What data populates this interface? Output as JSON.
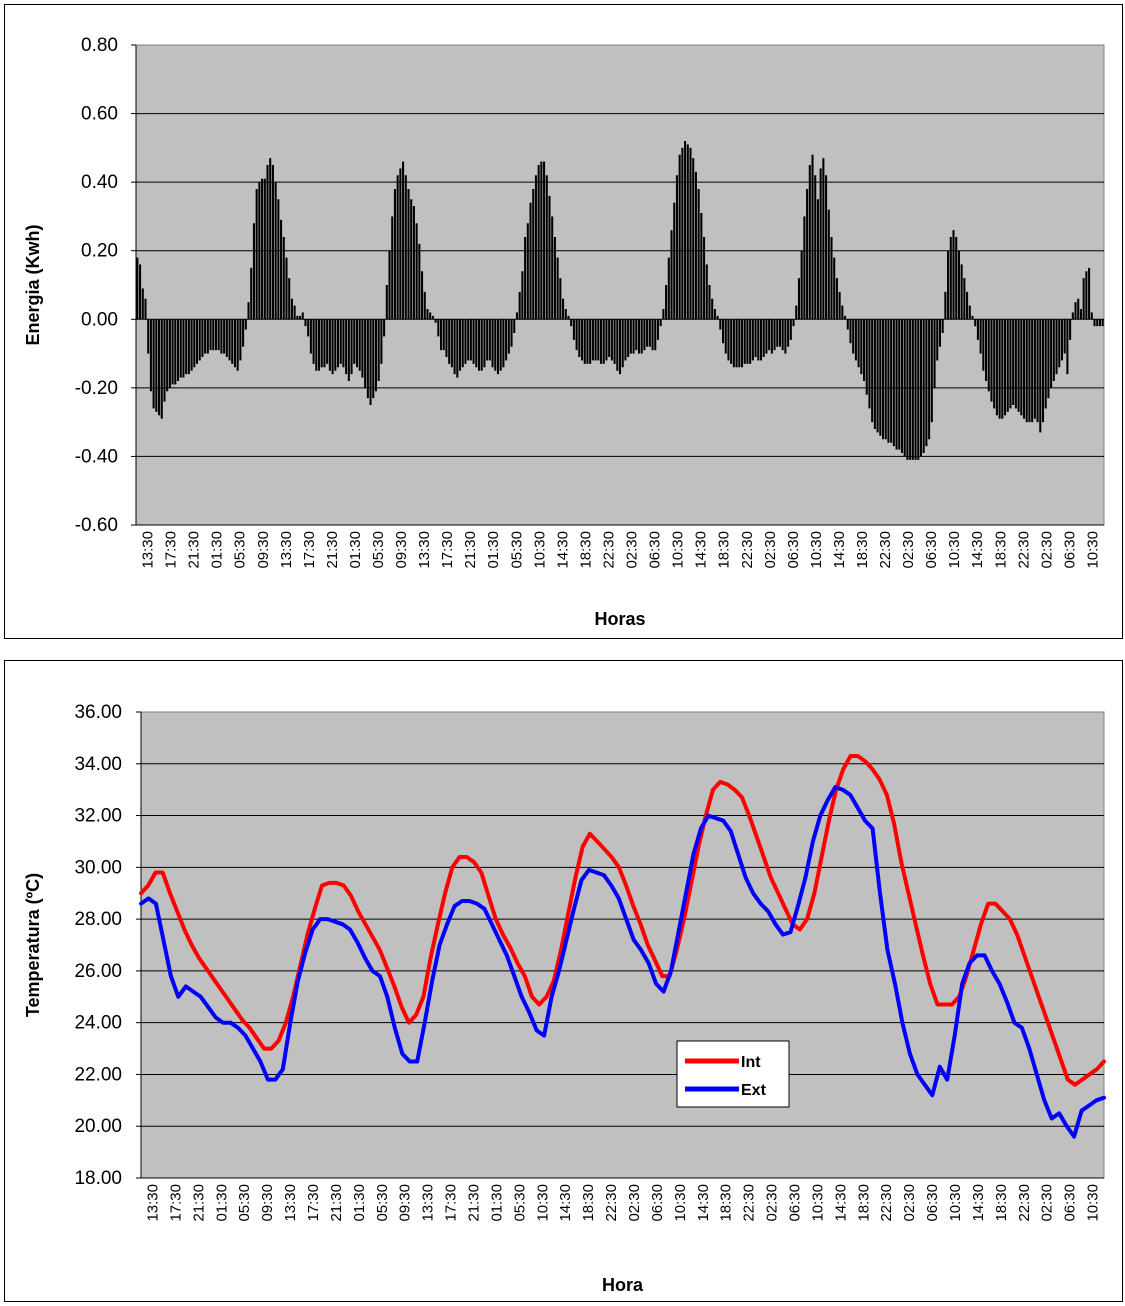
{
  "chart_data": [
    {
      "type": "bar",
      "title": "",
      "ylabel": "Energia (Kwh)",
      "xlabel": "Horas",
      "ylim": [
        -0.6,
        0.8
      ],
      "yticks": [
        "0.80",
        "0.60",
        "0.40",
        "0.20",
        "0.00",
        "-0.20",
        "-0.40",
        "-0.60"
      ],
      "x_tick_labels": [
        "13:30",
        "17:30",
        "21:30",
        "01:30",
        "05:30",
        "09:30",
        "13:30",
        "17:30",
        "21:30",
        "01:30",
        "05:30",
        "09:30",
        "13:30",
        "17:30",
        "21:30",
        "01:30",
        "05:30",
        "10:30",
        "14:30",
        "18:30",
        "22:30",
        "02:30",
        "06:30",
        "10:30",
        "14:30",
        "18:30",
        "22:30",
        "02:30",
        "06:30",
        "10:30",
        "14:30",
        "18:30",
        "22:30",
        "02:30",
        "06:30",
        "10:30",
        "14:30",
        "18:30",
        "22:30",
        "02:30",
        "06:30",
        "10:30"
      ],
      "bar_color": "#000000",
      "plot_bg": "#c0c0c0",
      "values": [
        0.18,
        0.16,
        0.09,
        0.06,
        -0.1,
        -0.21,
        -0.26,
        -0.27,
        -0.28,
        -0.29,
        -0.24,
        -0.21,
        -0.2,
        -0.19,
        -0.19,
        -0.18,
        -0.17,
        -0.17,
        -0.16,
        -0.16,
        -0.15,
        -0.14,
        -0.13,
        -0.12,
        -0.11,
        -0.1,
        -0.1,
        -0.09,
        -0.09,
        -0.09,
        -0.09,
        -0.1,
        -0.1,
        -0.11,
        -0.12,
        -0.13,
        -0.14,
        -0.15,
        -0.12,
        -0.08,
        -0.03,
        0.05,
        0.15,
        0.28,
        0.38,
        0.4,
        0.41,
        0.41,
        0.45,
        0.47,
        0.45,
        0.4,
        0.35,
        0.29,
        0.24,
        0.18,
        0.12,
        0.06,
        0.04,
        0.01,
        0.01,
        0.02,
        -0.02,
        -0.05,
        -0.1,
        -0.13,
        -0.15,
        -0.15,
        -0.14,
        -0.14,
        -0.13,
        -0.15,
        -0.16,
        -0.15,
        -0.14,
        -0.13,
        -0.14,
        -0.16,
        -0.18,
        -0.16,
        -0.13,
        -0.14,
        -0.15,
        -0.17,
        -0.2,
        -0.23,
        -0.25,
        -0.23,
        -0.21,
        -0.18,
        -0.13,
        -0.05,
        0.1,
        0.2,
        0.3,
        0.38,
        0.42,
        0.44,
        0.46,
        0.42,
        0.38,
        0.35,
        0.33,
        0.28,
        0.22,
        0.14,
        0.08,
        0.03,
        0.02,
        0.01,
        -0.01,
        -0.05,
        -0.09,
        -0.09,
        -0.11,
        -0.13,
        -0.14,
        -0.16,
        -0.17,
        -0.15,
        -0.14,
        -0.13,
        -0.12,
        -0.12,
        -0.13,
        -0.14,
        -0.15,
        -0.15,
        -0.14,
        -0.12,
        -0.12,
        -0.14,
        -0.15,
        -0.16,
        -0.15,
        -0.14,
        -0.12,
        -0.1,
        -0.08,
        -0.04,
        0.02,
        0.08,
        0.14,
        0.24,
        0.28,
        0.34,
        0.38,
        0.42,
        0.45,
        0.46,
        0.46,
        0.42,
        0.36,
        0.3,
        0.24,
        0.18,
        0.12,
        0.06,
        0.03,
        0.01,
        -0.02,
        -0.06,
        -0.09,
        -0.11,
        -0.12,
        -0.13,
        -0.13,
        -0.13,
        -0.12,
        -0.12,
        -0.12,
        -0.13,
        -0.13,
        -0.12,
        -0.11,
        -0.12,
        -0.13,
        -0.15,
        -0.16,
        -0.14,
        -0.12,
        -0.11,
        -0.1,
        -0.1,
        -0.09,
        -0.1,
        -0.1,
        -0.09,
        -0.08,
        -0.08,
        -0.09,
        -0.09,
        -0.06,
        -0.02,
        0.03,
        0.1,
        0.18,
        0.26,
        0.34,
        0.42,
        0.48,
        0.5,
        0.52,
        0.51,
        0.5,
        0.47,
        0.43,
        0.38,
        0.31,
        0.24,
        0.16,
        0.1,
        0.06,
        0.03,
        0.01,
        -0.03,
        -0.07,
        -0.1,
        -0.12,
        -0.13,
        -0.14,
        -0.14,
        -0.14,
        -0.14,
        -0.13,
        -0.13,
        -0.13,
        -0.12,
        -0.11,
        -0.12,
        -0.12,
        -0.11,
        -0.1,
        -0.09,
        -0.1,
        -0.09,
        -0.08,
        -0.08,
        -0.09,
        -0.1,
        -0.08,
        -0.06,
        -0.02,
        0.04,
        0.12,
        0.2,
        0.3,
        0.38,
        0.45,
        0.48,
        0.42,
        0.35,
        0.44,
        0.47,
        0.42,
        0.32,
        0.24,
        0.18,
        0.12,
        0.08,
        0.04,
        0.01,
        -0.03,
        -0.07,
        -0.1,
        -0.12,
        -0.14,
        -0.16,
        -0.18,
        -0.22,
        -0.26,
        -0.3,
        -0.32,
        -0.33,
        -0.34,
        -0.35,
        -0.35,
        -0.36,
        -0.36,
        -0.37,
        -0.38,
        -0.38,
        -0.39,
        -0.4,
        -0.41,
        -0.41,
        -0.41,
        -0.41,
        -0.41,
        -0.4,
        -0.39,
        -0.37,
        -0.35,
        -0.3,
        -0.2,
        -0.12,
        -0.08,
        -0.04,
        0.08,
        0.2,
        0.24,
        0.26,
        0.24,
        0.2,
        0.16,
        0.12,
        0.08,
        0.04,
        0.01,
        -0.02,
        -0.06,
        -0.1,
        -0.15,
        -0.18,
        -0.21,
        -0.24,
        -0.26,
        -0.28,
        -0.29,
        -0.29,
        -0.28,
        -0.27,
        -0.26,
        -0.25,
        -0.26,
        -0.27,
        -0.28,
        -0.29,
        -0.3,
        -0.3,
        -0.3,
        -0.29,
        -0.3,
        -0.33,
        -0.3,
        -0.26,
        -0.23,
        -0.2,
        -0.18,
        -0.16,
        -0.14,
        -0.12,
        -0.1,
        -0.16,
        -0.06,
        0.02,
        0.05,
        0.06,
        0.03,
        0.12,
        0.14,
        0.15,
        0.02,
        -0.02,
        -0.02,
        -0.02,
        -0.02
      ]
    },
    {
      "type": "line",
      "title": "",
      "ylabel": "Temperatura (ºC)",
      "xlabel": "Hora",
      "ylim": [
        18,
        36
      ],
      "yticks": [
        "36.00",
        "34.00",
        "32.00",
        "30.00",
        "28.00",
        "26.00",
        "24.00",
        "22.00",
        "20.00",
        "18.00"
      ],
      "x_tick_labels": [
        "13:30",
        "17:30",
        "21:30",
        "01:30",
        "05:30",
        "09:30",
        "13:30",
        "17:30",
        "21:30",
        "01:30",
        "05:30",
        "09:30",
        "13:30",
        "17:30",
        "21:30",
        "01:30",
        "05:30",
        "10:30",
        "14:30",
        "18:30",
        "22:30",
        "02:30",
        "06:30",
        "10:30",
        "14:30",
        "18:30",
        "22:30",
        "02:30",
        "06:30",
        "10:30",
        "14:30",
        "18:30",
        "22:30",
        "02:30",
        "06:30",
        "10:30",
        "14:30",
        "18:30",
        "22:30",
        "02:30",
        "06:30",
        "10:30"
      ],
      "plot_bg": "#c0c0c0",
      "legend": "inside, lower-center",
      "series": [
        {
          "name": "Int",
          "color": "#ff0000",
          "values": [
            29.0,
            29.3,
            29.8,
            29.8,
            29.0,
            28.3,
            27.6,
            27.0,
            26.5,
            26.1,
            25.7,
            25.3,
            24.9,
            24.5,
            24.1,
            23.8,
            23.4,
            23.0,
            23.0,
            23.3,
            24.0,
            25.0,
            26.2,
            27.4,
            28.4,
            29.3,
            29.4,
            29.4,
            29.3,
            28.9,
            28.3,
            27.8,
            27.3,
            26.8,
            26.1,
            25.4,
            24.6,
            24.0,
            24.3,
            25.0,
            26.5,
            27.8,
            29.0,
            30.0,
            30.4,
            30.4,
            30.2,
            29.8,
            28.9,
            28.0,
            27.4,
            26.9,
            26.3,
            25.8,
            25.0,
            24.7,
            25.0,
            25.6,
            26.8,
            28.2,
            29.6,
            30.8,
            31.3,
            31.0,
            30.7,
            30.4,
            30.0,
            29.3,
            28.5,
            27.8,
            27.0,
            26.4,
            25.8,
            25.8,
            26.8,
            28.0,
            29.4,
            30.8,
            32.0,
            33.0,
            33.3,
            33.2,
            33.0,
            32.7,
            32.0,
            31.2,
            30.4,
            29.6,
            29.0,
            28.4,
            27.8,
            27.6,
            28.0,
            29.0,
            30.4,
            31.8,
            33.0,
            33.8,
            34.3,
            34.3,
            34.1,
            33.8,
            33.4,
            32.8,
            31.7,
            30.2,
            29.0,
            27.8,
            26.6,
            25.5,
            24.7,
            24.7,
            24.7,
            25.0,
            25.8,
            26.8,
            27.8,
            28.6,
            28.6,
            28.3,
            28.0,
            27.4,
            26.6,
            25.8,
            25.0,
            24.2,
            23.4,
            22.6,
            21.8,
            21.6,
            21.8,
            22.0,
            22.2,
            22.5
          ]
        },
        {
          "name": "Ext",
          "color": "#0000ff",
          "values": [
            28.6,
            28.8,
            28.6,
            27.2,
            25.8,
            25.0,
            25.4,
            25.2,
            25.0,
            24.6,
            24.2,
            24.0,
            24.0,
            23.8,
            23.5,
            23.0,
            22.5,
            21.8,
            21.8,
            22.2,
            24.0,
            25.6,
            26.7,
            27.6,
            28.0,
            28.0,
            27.9,
            27.8,
            27.6,
            27.1,
            26.5,
            26.0,
            25.8,
            25.0,
            23.8,
            22.8,
            22.5,
            22.5,
            24.0,
            25.6,
            27.0,
            27.8,
            28.5,
            28.7,
            28.7,
            28.6,
            28.4,
            27.8,
            27.2,
            26.6,
            25.8,
            25.0,
            24.4,
            23.7,
            23.5,
            25.0,
            26.0,
            27.2,
            28.4,
            29.5,
            29.9,
            29.8,
            29.7,
            29.3,
            28.8,
            28.0,
            27.2,
            26.8,
            26.3,
            25.5,
            25.2,
            26.0,
            27.5,
            29.0,
            30.5,
            31.5,
            32.0,
            31.9,
            31.8,
            31.4,
            30.5,
            29.6,
            29.0,
            28.6,
            28.3,
            27.8,
            27.4,
            27.5,
            28.5,
            29.6,
            31.0,
            32.0,
            32.6,
            33.1,
            33.0,
            32.8,
            32.3,
            31.8,
            31.5,
            29.0,
            26.8,
            25.5,
            24.0,
            22.8,
            22.0,
            21.6,
            21.2,
            22.3,
            21.8,
            23.5,
            25.5,
            26.3,
            26.6,
            26.6,
            26.0,
            25.5,
            24.8,
            24.0,
            23.8,
            23.0,
            22.0,
            21.0,
            20.3,
            20.5,
            20.0,
            19.6,
            20.6,
            20.8,
            21.0,
            21.1
          ]
        }
      ]
    }
  ]
}
